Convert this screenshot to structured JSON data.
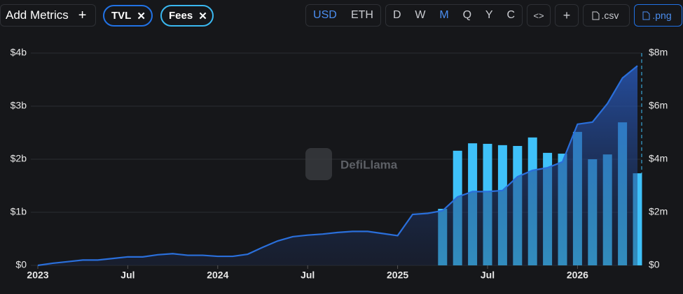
{
  "toolbar": {
    "add_metrics": "Add Metrics",
    "add_icon": "+",
    "metrics": [
      "TVL",
      "Fees"
    ],
    "remove_icon": "✕",
    "currencies": [
      "USD",
      "ETH"
    ],
    "periods": [
      "D",
      "W",
      "M",
      "Q",
      "Y",
      "C"
    ],
    "embed": "<>",
    "plus": "+",
    "csv": ".csv",
    "png": ".png"
  },
  "chart_data": {
    "type": "bar-line",
    "watermark": "DefiLlama",
    "categories": [
      "2023-01",
      "2023-02",
      "2023-03",
      "2023-04",
      "2023-05",
      "2023-06",
      "2023-07",
      "2023-08",
      "2023-09",
      "2023-10",
      "2023-11",
      "2023-12",
      "2024-01",
      "2024-02",
      "2024-03",
      "2024-04",
      "2024-05",
      "2024-06",
      "2024-07",
      "2024-08",
      "2024-09",
      "2024-10",
      "2024-11",
      "2024-12",
      "2025-01",
      "2025-02",
      "2025-03",
      "2025-04",
      "2025-05",
      "2025-06",
      "2025-07",
      "2025-08",
      "2025-09",
      "2025-10",
      "2025-11",
      "2025-12",
      "2026-01",
      "2026-02",
      "2026-03",
      "2026-04",
      "2026-05"
    ],
    "xticks": [
      {
        "value": "2023-01",
        "label": "2023"
      },
      {
        "value": "2023-07",
        "label": "Jul"
      },
      {
        "value": "2024-01",
        "label": "2024"
      },
      {
        "value": "2024-07",
        "label": "Jul"
      },
      {
        "value": "2025-01",
        "label": "2025"
      },
      {
        "value": "2025-07",
        "label": "Jul"
      },
      {
        "value": "2026-01",
        "label": "2026"
      }
    ],
    "series": [
      {
        "name": "TVL",
        "type": "area",
        "color": "#2a6fdb",
        "values": [
          0,
          0.04,
          0.07,
          0.1,
          0.1,
          0.13,
          0.16,
          0.16,
          0.2,
          0.22,
          0.19,
          0.19,
          0.17,
          0.17,
          0.21,
          0.34,
          0.46,
          0.54,
          0.57,
          0.59,
          0.62,
          0.64,
          0.64,
          0.6,
          0.56,
          0.96,
          0.98,
          1.03,
          1.29,
          1.39,
          1.39,
          1.41,
          1.67,
          1.79,
          1.84,
          1.95,
          2.66,
          2.7,
          3.05,
          3.53,
          3.76
        ]
      },
      {
        "name": "Fees",
        "type": "bar",
        "axis": "y2",
        "color": "#3fc1f9",
        "values": [
          null,
          null,
          null,
          null,
          null,
          null,
          null,
          null,
          null,
          null,
          null,
          null,
          null,
          null,
          null,
          null,
          null,
          null,
          null,
          null,
          null,
          null,
          null,
          null,
          null,
          null,
          null,
          2.13,
          4.32,
          4.6,
          4.58,
          4.53,
          4.5,
          4.82,
          4.24,
          4.21,
          5.03,
          4.0,
          4.18,
          5.39,
          3.47
        ]
      }
    ],
    "ylim": [
      0,
      4
    ],
    "yticks": [
      {
        "value": 0,
        "label": "$0"
      },
      {
        "value": 1,
        "label": "$1b"
      },
      {
        "value": 2,
        "label": "$2b"
      },
      {
        "value": 3,
        "label": "$3b"
      },
      {
        "value": 4,
        "label": "$4b"
      }
    ],
    "y2lim": [
      0,
      8
    ],
    "y2ticks": [
      {
        "value": 0,
        "label": "$0"
      },
      {
        "value": 2,
        "label": "$2m"
      },
      {
        "value": 4,
        "label": "$4m"
      },
      {
        "value": 6,
        "label": "$6m"
      },
      {
        "value": 8,
        "label": "$8m"
      }
    ],
    "grid": true
  }
}
